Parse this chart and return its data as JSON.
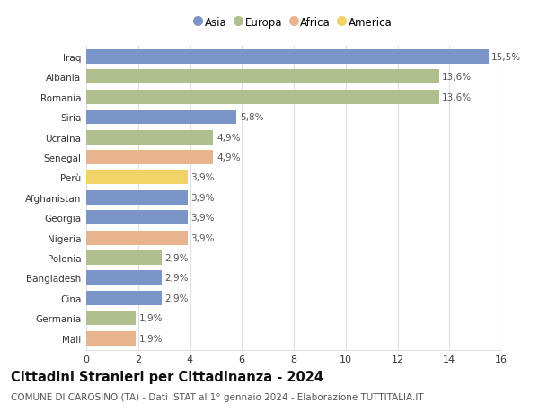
{
  "countries": [
    "Iraq",
    "Albania",
    "Romania",
    "Siria",
    "Ucraina",
    "Senegal",
    "Perù",
    "Afghanistan",
    "Georgia",
    "Nigeria",
    "Polonia",
    "Bangladesh",
    "Cina",
    "Germania",
    "Mali"
  ],
  "values": [
    15.5,
    13.6,
    13.6,
    5.8,
    4.9,
    4.9,
    3.9,
    3.9,
    3.9,
    3.9,
    2.9,
    2.9,
    2.9,
    1.9,
    1.9
  ],
  "labels": [
    "15,5%",
    "13,6%",
    "13,6%",
    "5,8%",
    "4,9%",
    "4,9%",
    "3,9%",
    "3,9%",
    "3,9%",
    "3,9%",
    "2,9%",
    "2,9%",
    "2,9%",
    "1,9%",
    "1,9%"
  ],
  "continents": [
    "Asia",
    "Europa",
    "Europa",
    "Asia",
    "Europa",
    "Africa",
    "America",
    "Asia",
    "Asia",
    "Africa",
    "Europa",
    "Asia",
    "Asia",
    "Europa",
    "Africa"
  ],
  "colors": {
    "Asia": "#7b95c9",
    "Europa": "#afc08e",
    "Africa": "#e8b48e",
    "America": "#f0d468"
  },
  "legend_order": [
    "Asia",
    "Europa",
    "Africa",
    "America"
  ],
  "title": "Cittadini Stranieri per Cittadinanza - 2024",
  "subtitle": "COMUNE DI CAROSINO (TA) - Dati ISTAT al 1° gennaio 2024 - Elaborazione TUTTITALIA.IT",
  "xlim": [
    0,
    16
  ],
  "xticks": [
    0,
    2,
    4,
    6,
    8,
    10,
    12,
    14,
    16
  ],
  "background_color": "#ffffff",
  "grid_color": "#e0e0e0",
  "bar_height": 0.72,
  "label_fontsize": 7.5,
  "title_fontsize": 10.5,
  "subtitle_fontsize": 7.5,
  "ytick_fontsize": 7.5,
  "xtick_fontsize": 8,
  "legend_fontsize": 8.5
}
